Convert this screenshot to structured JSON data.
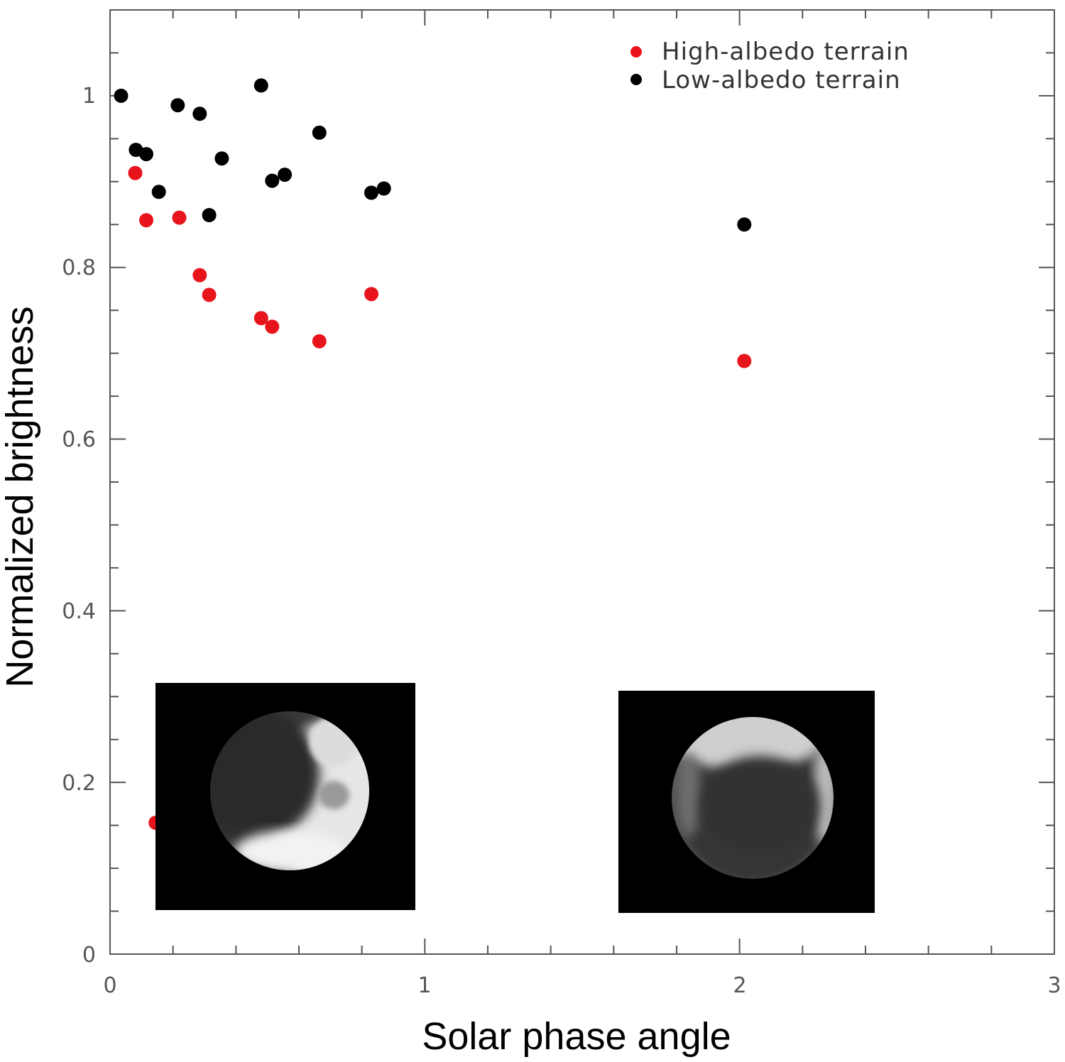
{
  "chart_data": {
    "type": "scatter",
    "title": "",
    "xlabel": "Solar phase angle",
    "ylabel": "Normalized brightness",
    "xlim": [
      0,
      3
    ],
    "ylim": [
      0,
      1.1
    ],
    "x_ticks": [
      "0",
      "1",
      "2",
      "3"
    ],
    "y_ticks": [
      "0",
      "0.2",
      "0.4",
      "0.6",
      "0.8",
      "1"
    ],
    "grid": false,
    "legend_position": "top-right",
    "series": [
      {
        "name": "High-albedo terrain",
        "color": "#e8141b",
        "points": [
          [
            0.08,
            0.91
          ],
          [
            0.115,
            0.855
          ],
          [
            0.22,
            0.858
          ],
          [
            0.285,
            0.791
          ],
          [
            0.315,
            0.768
          ],
          [
            0.48,
            0.741
          ],
          [
            0.515,
            0.731
          ],
          [
            0.665,
            0.714
          ],
          [
            0.83,
            0.769
          ],
          [
            2.015,
            0.691
          ],
          [
            0.145,
            0.153
          ]
        ]
      },
      {
        "name": "Low-albedo terrain",
        "color": "#000000",
        "points": [
          [
            0.035,
            1.0
          ],
          [
            0.082,
            0.937
          ],
          [
            0.115,
            0.932
          ],
          [
            0.155,
            0.888
          ],
          [
            0.215,
            0.989
          ],
          [
            0.285,
            0.979
          ],
          [
            0.315,
            0.861
          ],
          [
            0.355,
            0.927
          ],
          [
            0.48,
            1.012
          ],
          [
            0.515,
            0.901
          ],
          [
            0.555,
            0.908
          ],
          [
            0.665,
            0.957
          ],
          [
            0.83,
            0.887
          ],
          [
            0.87,
            0.892
          ],
          [
            2.015,
            0.85
          ]
        ]
      }
    ]
  },
  "insets": [
    {
      "name": "moon-inset-left",
      "lit": "right",
      "xspan": [
        0.145,
        0.97
      ],
      "yspan": [
        0.05,
        0.315
      ]
    },
    {
      "name": "moon-inset-right",
      "lit": "top",
      "xspan": [
        1.615,
        2.43
      ],
      "yspan": [
        0.045,
        0.305
      ]
    }
  ]
}
